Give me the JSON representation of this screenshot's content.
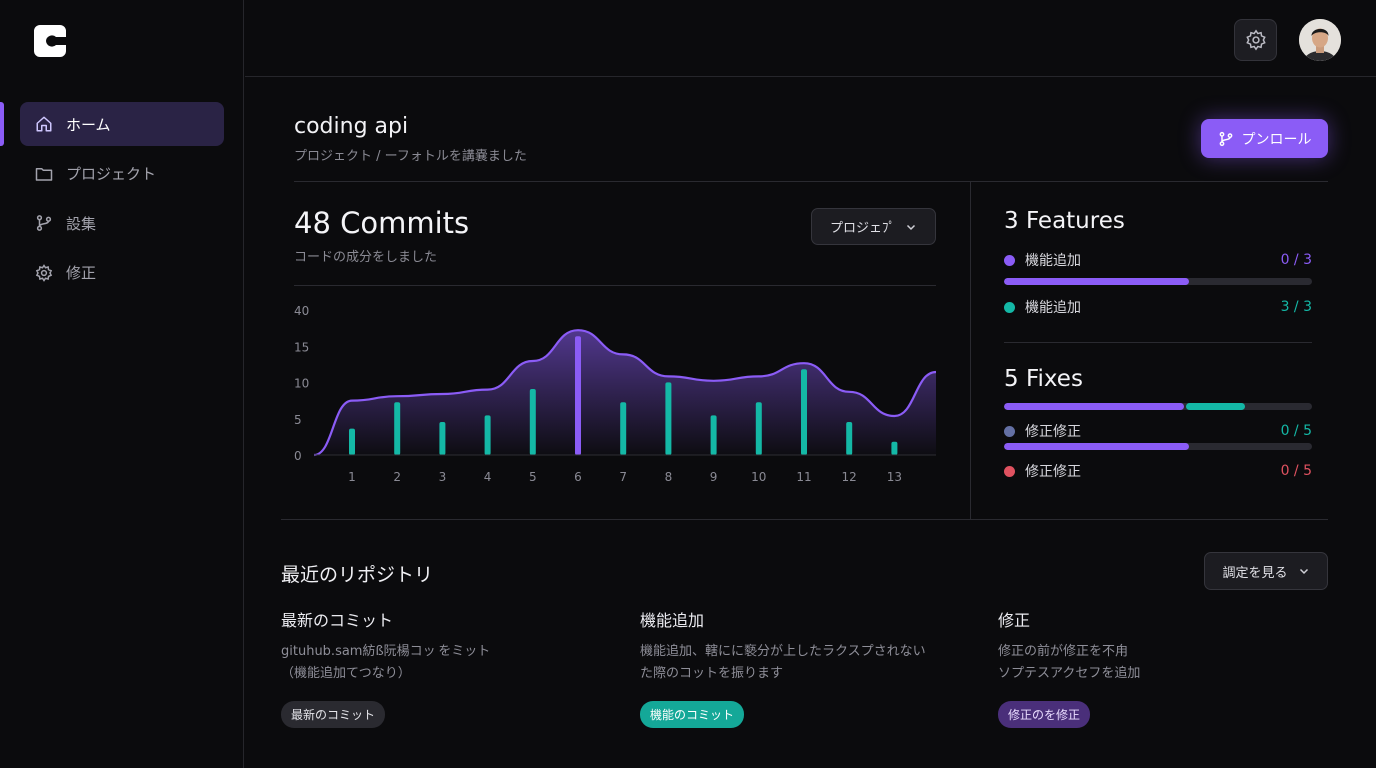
{
  "sidebar": {
    "items": [
      {
        "label": "ホーム",
        "icon": "home-icon",
        "active": true
      },
      {
        "label": "プロジェクト",
        "icon": "folder-icon",
        "active": false
      },
      {
        "label": "設集",
        "icon": "git-branch-icon",
        "active": false
      },
      {
        "label": "修正",
        "icon": "gear-icon",
        "active": false
      }
    ]
  },
  "header": {
    "settings_icon": "gear-icon",
    "avatar": "user-avatar"
  },
  "project": {
    "title": "coding api",
    "subtitle": "プロジェクト / ーフォトルを講嚢ました",
    "primary_button": "プンロール",
    "primary_button_icon": "git-branch-icon"
  },
  "commits": {
    "title": "48 Commits",
    "subtitle": "コードの成分をしました",
    "select_label": "プロジェﾌﾟ"
  },
  "chart_data": {
    "type": "bar",
    "categories": [
      "1",
      "2",
      "3",
      "4",
      "5",
      "6",
      "7",
      "8",
      "9",
      "10",
      "11",
      "12",
      "13"
    ],
    "y_ticks": [
      "40",
      "15",
      "10",
      "5",
      "0"
    ],
    "series": [
      {
        "values": [
          4,
          8,
          5,
          6,
          10,
          18,
          8,
          11,
          6,
          8,
          13,
          5,
          2
        ],
        "color": "#14b8a6"
      }
    ],
    "highlight_index": 5,
    "highlight_color": "#8b5cf6",
    "area_color": "#8b5cf6"
  },
  "features": {
    "title": "3 Features",
    "items": [
      {
        "label": "機能追加",
        "value": "0 / 3",
        "color": "#8b5cf6",
        "progress": 0.6
      },
      {
        "label": "機能追加",
        "value": "3 / 3",
        "color": "#14b8a6"
      }
    ]
  },
  "fixes": {
    "title": "5 Fixes",
    "bar_segments": [
      {
        "color": "#8b5cf6",
        "fraction": 0.59
      },
      {
        "color": "#14b8a6",
        "fraction": 0.2
      }
    ],
    "items": [
      {
        "label": "修正修正",
        "value": "0 / 5",
        "color": "#6470a4",
        "value_color": "#14b8a6",
        "progress": 0.6
      },
      {
        "label": "修正修正",
        "value": "0 / 5",
        "color": "#e05260",
        "value_color": "#e05260"
      }
    ]
  },
  "recent": {
    "title": "最近のリポジトリ",
    "view_button": "調定を見る",
    "cards": [
      {
        "title": "最新のコミット",
        "lines": [
          "gituhub.sam紡ß阮楊コッ をミット",
          "（機能追加てつなり）"
        ],
        "tag": "最新のコミット",
        "tag_bg": "#2a2a30",
        "tag_color": "#e5e5ea"
      },
      {
        "title": "機能追加",
        "lines": [
          "機能追加、轄にに褻分が上したラクスプされない",
          "た際のコットを振ります"
        ],
        "tag": "機能のコミット",
        "tag_bg": "#14a898",
        "tag_color": "#ffffff"
      },
      {
        "title": "修正",
        "lines": [
          "修正の前が修正を不甪",
          "ソプテスアクセフを追加"
        ],
        "tag": "修正のを修正",
        "tag_bg": "#4a2f7a",
        "tag_color": "#e9dcff"
      }
    ]
  }
}
